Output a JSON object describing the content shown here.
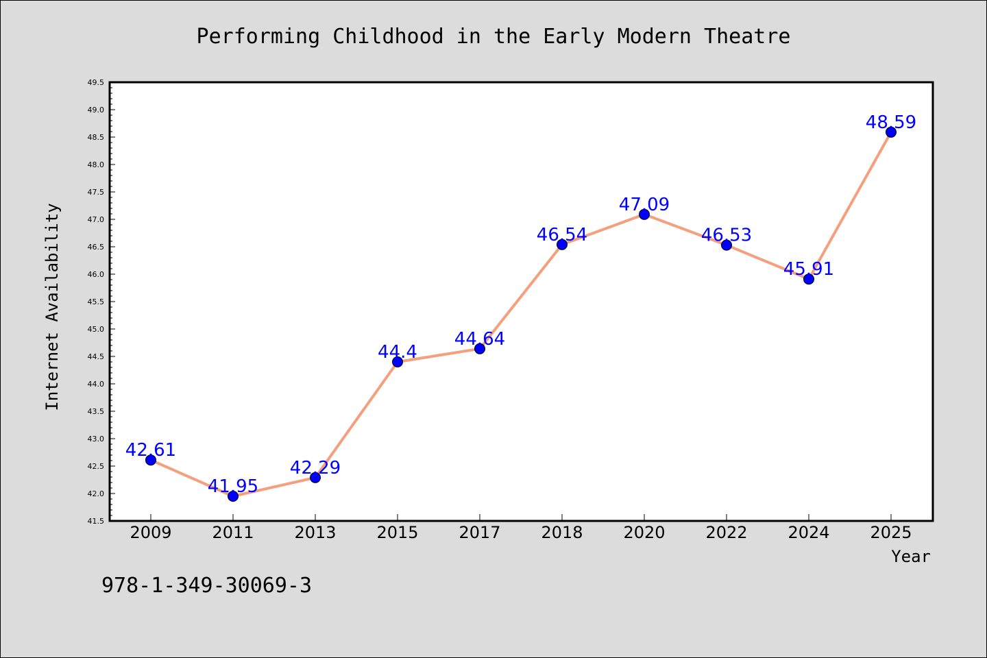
{
  "chart_data": {
    "type": "line",
    "title": "Performing Childhood in the Early Modern Theatre",
    "xlabel": "Year",
    "ylabel": "Internet Availability",
    "categories": [
      "2009",
      "2011",
      "2013",
      "2015",
      "2017",
      "2018",
      "2020",
      "2022",
      "2024",
      "2025"
    ],
    "values": [
      42.61,
      41.95,
      42.29,
      44.4,
      44.64,
      46.54,
      47.09,
      46.53,
      45.91,
      48.59
    ],
    "data_labels": [
      "42.61",
      "41.95",
      "42.29",
      "44.4",
      "44.64",
      "46.54",
      "47.09",
      "46.53",
      "45.91",
      "48.59"
    ],
    "ylim": [
      41.5,
      49.5
    ],
    "yticks": [
      "41.5",
      "42.0",
      "42.5",
      "43.0",
      "43.5",
      "44.0",
      "44.5",
      "45.0",
      "45.5",
      "46.0",
      "46.5",
      "47.0",
      "47.5",
      "48.0",
      "48.5",
      "49.0",
      "49.5"
    ],
    "grid": false,
    "line_color": "#f4a07e",
    "marker_color": "#0000ff",
    "label_color": "#0000ff"
  },
  "footer": {
    "isbn": "978-1-349-30069-3"
  }
}
